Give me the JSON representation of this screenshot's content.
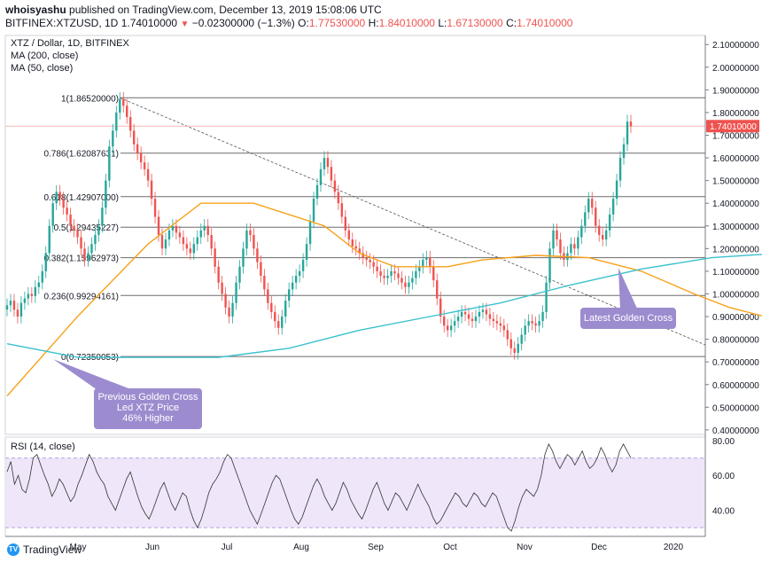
{
  "header": {
    "author": "whoisyashu",
    "published": "published on TradingView.com, December 13, 2019 15:08:06 UTC",
    "symbol": "BITFINEX:XTZUSD, 1D",
    "last": "1.74010000",
    "change": "−0.02300000 (−1.3%)",
    "o_label": "O:",
    "o": "1.77530000",
    "h_label": "H:",
    "h": "1.84010000",
    "l_label": "L:",
    "l": "1.67130000",
    "c_label": "C:",
    "c": "1.74010000",
    "down_icon": "triangle-down-icon"
  },
  "footer": {
    "brand": "TradingView",
    "logo_icon": "tradingview-logo-icon"
  },
  "annotations": {
    "latest": "Latest Golden Cross",
    "previous": [
      "Previous Golden Cross",
      "Led XTZ Price",
      "46% Higher"
    ]
  },
  "chart_data": [
    {
      "type": "candlestick",
      "title": "XTZ / Dollar, 1D, BITFINEX",
      "indicators": [
        "MA (200, close)",
        "MA (50, close)"
      ],
      "x_ticks": [
        "May",
        "Jun",
        "Jul",
        "Aug",
        "Sep",
        "Oct",
        "Nov",
        "Dec",
        "2020"
      ],
      "y_ticks": [
        "0.40000000",
        "0.50000000",
        "0.60000000",
        "0.70000000",
        "0.80000000",
        "0.90000000",
        "1.00000000",
        "1.10000000",
        "1.20000000",
        "1.30000000",
        "1.40000000",
        "1.50000000",
        "1.60000000",
        "1.70000000",
        "1.80000000",
        "1.90000000",
        "2.00000000",
        "2.10000000"
      ],
      "ylim": [
        0.38,
        2.14
      ],
      "last_price": "1.74010000",
      "fib_levels": [
        {
          "label": "1(1.86520000)",
          "value": 1.8652
        },
        {
          "label": "0.786(1.62087631)",
          "value": 1.62087631
        },
        {
          "label": "0.618(1.42907000)",
          "value": 1.42907
        },
        {
          "label": "0.5(1.29435227)",
          "value": 1.29435227
        },
        {
          "label": "0.382(1.15962973)",
          "value": 1.15962973
        },
        {
          "label": "0.236(0.99294161)",
          "value": 0.99294161
        },
        {
          "label": "0(0.72350053)",
          "value": 0.72350053
        }
      ],
      "series": {
        "close": [
          0.95,
          0.97,
          0.93,
          0.9,
          0.96,
          0.98,
          1.0,
          0.99,
          1.03,
          1.05,
          1.1,
          1.18,
          1.3,
          1.4,
          1.45,
          1.42,
          1.38,
          1.35,
          1.3,
          1.28,
          1.25,
          1.2,
          1.15,
          1.18,
          1.22,
          1.26,
          1.3,
          1.38,
          1.5,
          1.65,
          1.72,
          1.8,
          1.86,
          1.83,
          1.78,
          1.72,
          1.66,
          1.62,
          1.58,
          1.55,
          1.5,
          1.42,
          1.34,
          1.26,
          1.2,
          1.24,
          1.28,
          1.3,
          1.27,
          1.25,
          1.22,
          1.2,
          1.18,
          1.22,
          1.25,
          1.28,
          1.3,
          1.26,
          1.2,
          1.12,
          1.05,
          1.0,
          0.94,
          0.9,
          0.96,
          1.05,
          1.12,
          1.2,
          1.28,
          1.26,
          1.2,
          1.14,
          1.08,
          1.02,
          0.96,
          0.92,
          0.88,
          0.85,
          0.9,
          0.97,
          1.02,
          1.05,
          1.08,
          1.1,
          1.15,
          1.22,
          1.32,
          1.42,
          1.48,
          1.55,
          1.6,
          1.56,
          1.5,
          1.45,
          1.4,
          1.34,
          1.28,
          1.24,
          1.21,
          1.2,
          1.18,
          1.16,
          1.15,
          1.14,
          1.12,
          1.1,
          1.08,
          1.07,
          1.08,
          1.1,
          1.09,
          1.07,
          1.05,
          1.03,
          1.05,
          1.07,
          1.1,
          1.12,
          1.15,
          1.16,
          1.12,
          1.06,
          0.98,
          0.9,
          0.86,
          0.84,
          0.86,
          0.88,
          0.9,
          0.92,
          0.91,
          0.89,
          0.88,
          0.9,
          0.92,
          0.93,
          0.91,
          0.89,
          0.88,
          0.87,
          0.86,
          0.84,
          0.8,
          0.76,
          0.74,
          0.78,
          0.82,
          0.86,
          0.88,
          0.87,
          0.86,
          0.88,
          0.92,
          1.05,
          1.2,
          1.28,
          1.24,
          1.18,
          1.15,
          1.18,
          1.22,
          1.2,
          1.25,
          1.3,
          1.36,
          1.42,
          1.38,
          1.3,
          1.26,
          1.24,
          1.28,
          1.35,
          1.42,
          1.5,
          1.6,
          1.66,
          1.76,
          1.74
        ]
      },
      "ma50": [
        [
          0,
          0.55
        ],
        [
          20,
          0.9
        ],
        [
          40,
          1.22
        ],
        [
          55,
          1.4
        ],
        [
          70,
          1.4
        ],
        [
          90,
          1.3
        ],
        [
          100,
          1.18
        ],
        [
          110,
          1.12
        ],
        [
          125,
          1.12
        ],
        [
          135,
          1.15
        ],
        [
          150,
          1.17
        ],
        [
          165,
          1.16
        ],
        [
          180,
          1.1
        ],
        [
          195,
          1.0
        ],
        [
          205,
          0.94
        ],
        [
          215,
          0.9
        ],
        [
          230,
          0.91
        ],
        [
          242,
          0.98
        ],
        [
          255,
          1.06
        ],
        [
          266,
          1.12
        ],
        [
          275,
          1.2
        ]
      ],
      "ma200": [
        [
          0,
          0.78
        ],
        [
          20,
          0.72
        ],
        [
          40,
          0.72
        ],
        [
          60,
          0.72
        ],
        [
          80,
          0.76
        ],
        [
          100,
          0.84
        ],
        [
          120,
          0.9
        ],
        [
          140,
          0.96
        ],
        [
          160,
          1.04
        ],
        [
          180,
          1.11
        ],
        [
          200,
          1.16
        ],
        [
          215,
          1.175
        ],
        [
          235,
          1.17
        ],
        [
          250,
          1.15
        ],
        [
          262,
          1.14
        ],
        [
          275,
          1.13
        ]
      ],
      "trendline": [
        [
          32,
          1.865
        ],
        [
          290,
          0.78
        ]
      ]
    },
    {
      "type": "line",
      "title": "RSI (14, close)",
      "y_ticks": [
        "40.00",
        "60.00",
        "80.00"
      ],
      "ylim": [
        25,
        82
      ],
      "band": [
        30,
        70
      ],
      "values": [
        62,
        68,
        55,
        60,
        52,
        50,
        58,
        70,
        72,
        66,
        60,
        55,
        48,
        52,
        58,
        55,
        50,
        45,
        48,
        55,
        60,
        66,
        72,
        68,
        62,
        58,
        55,
        48,
        44,
        40,
        46,
        52,
        58,
        62,
        55,
        48,
        42,
        38,
        35,
        40,
        46,
        52,
        56,
        50,
        44,
        40,
        45,
        50,
        48,
        40,
        34,
        30,
        35,
        42,
        50,
        55,
        58,
        62,
        68,
        72,
        70,
        64,
        58,
        52,
        46,
        40,
        36,
        32,
        38,
        44,
        50,
        56,
        60,
        58,
        52,
        46,
        40,
        35,
        32,
        36,
        42,
        48,
        54,
        58,
        54,
        48,
        44,
        40,
        44,
        50,
        56,
        52,
        46,
        42,
        38,
        35,
        40,
        46,
        52,
        56,
        50,
        44,
        40,
        45,
        50,
        48,
        44,
        40,
        45,
        50,
        55,
        50,
        46,
        42,
        36,
        32,
        34,
        38,
        42,
        46,
        50,
        48,
        44,
        42,
        46,
        50,
        48,
        44,
        42,
        46,
        50,
        48,
        42,
        36,
        30,
        28,
        34,
        42,
        48,
        52,
        50,
        48,
        52,
        60,
        72,
        78,
        74,
        68,
        64,
        68,
        72,
        70,
        66,
        70,
        74,
        68,
        64,
        66,
        70,
        76,
        72,
        66,
        62,
        66,
        74,
        78,
        74,
        70
      ]
    }
  ]
}
